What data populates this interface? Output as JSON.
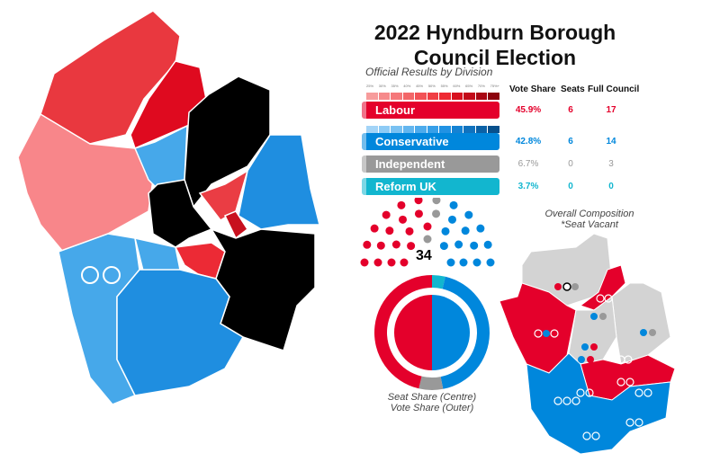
{
  "title_line1": "2022 Hyndburn Borough",
  "title_line2": "Council Election",
  "subtitle": "Official Results by Division",
  "scale_ticks": [
    "25%",
    "30%",
    "35%",
    "40%",
    "45%",
    "50%",
    "55%",
    "60%",
    "65%",
    "70%",
    "75%+"
  ],
  "headers": {
    "vote_share": "Vote Share",
    "seats": "Seats",
    "full_council": "Full Council"
  },
  "colors": {
    "labour": "#e4002b",
    "conservative": "#0087dc",
    "independent": "#999999",
    "reform": "#12b6cf",
    "vacant": "#000000"
  },
  "parties": [
    {
      "name": "Labour",
      "vote_share": "45.9%",
      "seats": "6",
      "full_council": "17",
      "color": "#e4002b"
    },
    {
      "name": "Conservative",
      "vote_share": "42.8%",
      "seats": "6",
      "full_council": "14",
      "color": "#0087dc"
    },
    {
      "name": "Independent",
      "vote_share": "6.7%",
      "seats": "0",
      "full_council": "3",
      "color": "#999999"
    },
    {
      "name": "Reform UK",
      "vote_share": "3.7%",
      "seats": "0",
      "full_council": "0",
      "color": "#12b6cf"
    }
  ],
  "total_seats": "34",
  "donut_caption1": "Seat Share (Centre)",
  "donut_caption2": "Vote Share (Outer)",
  "composition_caption1": "Overall Composition",
  "composition_caption2": "*Seat Vacant",
  "chart_data": {
    "type": "pie",
    "outer_vote_share": [
      {
        "name": "Labour",
        "value": 45.9
      },
      {
        "name": "Conservative",
        "value": 42.8
      },
      {
        "name": "Independent",
        "value": 6.7
      },
      {
        "name": "Reform UK",
        "value": 3.7
      }
    ],
    "inner_seat_share": [
      {
        "name": "Labour",
        "value": 6
      },
      {
        "name": "Conservative",
        "value": 6
      }
    ],
    "parliament": [
      {
        "name": "Labour",
        "value": 17
      },
      {
        "name": "Independent",
        "value": 3
      },
      {
        "name": "Conservative",
        "value": 14
      }
    ]
  }
}
